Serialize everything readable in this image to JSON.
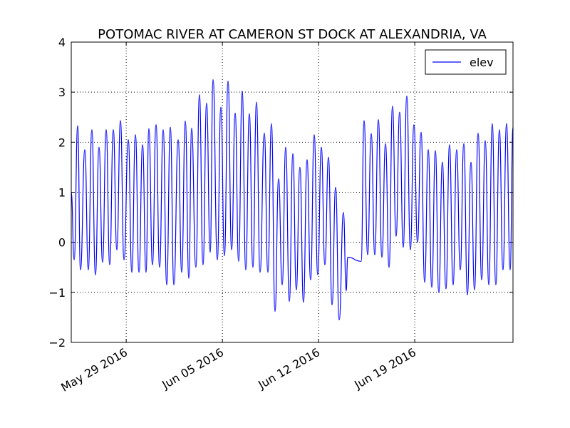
{
  "chart_data": {
    "type": "line",
    "title": "POTOMAC RIVER AT CAMERON ST DOCK AT ALEXANDRIA, VA",
    "x": [
      736109.0,
      736109.21,
      736109.47,
      736109.67,
      736109.99,
      736110.24,
      736110.5,
      736110.76,
      736111.02,
      736111.28,
      736111.54,
      736111.8,
      736112.06,
      736112.32,
      736112.58,
      736112.84,
      736113.15,
      736113.41,
      736113.67,
      736113.93,
      736114.19,
      736114.44,
      736114.65,
      736114.91,
      736115.17,
      736115.43,
      736115.69,
      736115.95,
      736116.21,
      736116.47,
      736116.78,
      736117.04,
      736117.3,
      736117.56,
      736117.76,
      736118.07,
      736118.33,
      736118.59,
      736118.85,
      736119.11,
      736119.32,
      736119.63,
      736119.89,
      736120.15,
      736120.41,
      736120.67,
      736120.93,
      736121.18,
      736121.44,
      736121.7,
      736121.96,
      736122.22,
      736122.48,
      736122.74,
      736123.05,
      736123.31,
      736123.57,
      736123.83,
      736124.09,
      736124.35,
      736124.61,
      736124.87,
      736125.13,
      736125.38,
      736125.64,
      736125.9,
      736126.16,
      736126.42,
      736126.68,
      736126.94,
      736127.2,
      736127.46,
      736127.72,
      736127.98,
      736128.24,
      736128.5,
      736128.81,
      736129.01,
      736129.12,
      736130.1,
      736130.31,
      736130.57,
      736130.83,
      736131.09,
      736131.35,
      736131.61,
      736131.87,
      736132.13,
      736132.38,
      736132.64,
      736132.9,
      736133.16,
      736133.42,
      736133.68,
      736133.94,
      736134.2,
      736134.46,
      736134.72,
      736134.98,
      736135.24,
      736135.5,
      736135.75,
      736136.01,
      736136.27,
      736136.53,
      736136.79,
      736137.05,
      736137.31,
      736137.57,
      736137.83,
      736138.09,
      736138.35,
      736138.61,
      736138.87,
      736139.13,
      736139.39,
      736139.64,
      736139.9,
      736140.16,
      736140.42,
      736140.68,
      736140.94,
      736141.15
    ],
    "series": [
      {
        "name": "elev",
        "color": "#0000ff",
        "values": [
          1.0,
          -0.35,
          2.33,
          -0.55,
          1.85,
          -0.55,
          2.25,
          -0.65,
          1.9,
          -0.4,
          2.25,
          -0.45,
          2.25,
          -0.15,
          2.43,
          -0.35,
          2.05,
          -0.6,
          2.15,
          -0.6,
          1.95,
          -0.6,
          2.27,
          -0.45,
          2.35,
          -0.5,
          2.25,
          -0.85,
          2.3,
          -0.85,
          2.05,
          -0.6,
          2.42,
          -0.72,
          2.28,
          -0.5,
          2.95,
          -0.45,
          2.78,
          -0.2,
          3.25,
          -0.35,
          2.7,
          -0.27,
          3.22,
          -0.15,
          2.58,
          -0.38,
          3.02,
          -0.55,
          2.57,
          -0.5,
          2.8,
          -0.6,
          2.18,
          -0.6,
          2.37,
          -1.38,
          1.27,
          -0.85,
          1.9,
          -1.18,
          1.77,
          -0.95,
          1.5,
          -1.2,
          1.65,
          -0.75,
          2.15,
          -0.65,
          1.9,
          -0.45,
          1.7,
          -1.25,
          1.1,
          -1.55,
          0.6,
          -0.97,
          -0.3,
          -0.38,
          2.43,
          -0.25,
          2.17,
          -0.25,
          2.45,
          -0.3,
          1.97,
          -0.5,
          2.72,
          0.12,
          2.6,
          -0.1,
          2.92,
          -0.15,
          2.35,
          0.0,
          2.2,
          -0.8,
          1.85,
          -0.9,
          1.83,
          -1.0,
          1.6,
          -0.93,
          1.95,
          -0.85,
          1.85,
          -0.55,
          1.97,
          -1.05,
          1.6,
          -0.95,
          2.18,
          -0.75,
          2.03,
          -0.85,
          2.37,
          -0.85,
          2.25,
          -0.55,
          2.37,
          -0.55,
          2.3
        ]
      }
    ],
    "xlim": [
      736109.0,
      736141.15
    ],
    "xticks": [
      {
        "value": 736113,
        "label": "May 29 2016"
      },
      {
        "value": 736120,
        "label": "Jun 05 2016"
      },
      {
        "value": 736127,
        "label": "Jun 12 2016"
      },
      {
        "value": 736134,
        "label": "Jun 19 2016"
      }
    ],
    "ylim": [
      -2,
      4
    ],
    "yticks": [
      {
        "value": -2,
        "label": "−2"
      },
      {
        "value": -1,
        "label": "−1"
      },
      0,
      1,
      2,
      3,
      4
    ],
    "grid": true,
    "legend": "upper right"
  }
}
